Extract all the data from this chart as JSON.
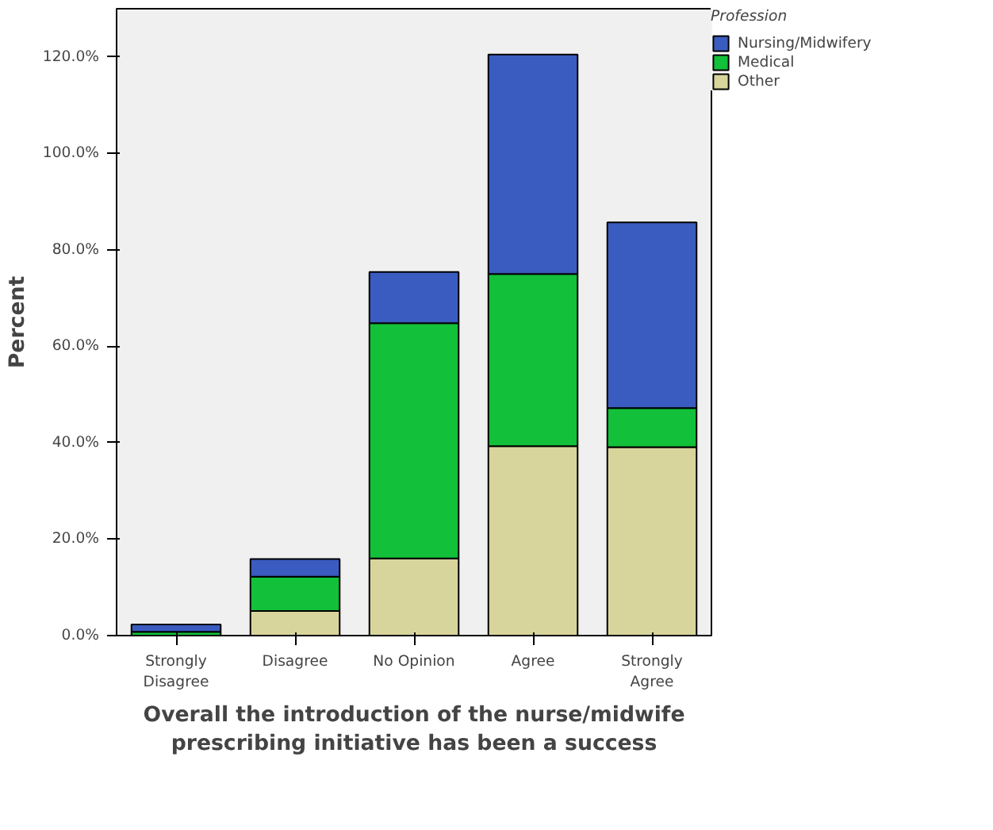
{
  "chart_data": {
    "type": "bar",
    "stacked": true,
    "xlabel": "Overall the introduction of the nurse/midwife\nprescribing initiative has been a success",
    "ylabel": "Percent",
    "legend_title": "Profession",
    "categories": [
      "Strongly\nDisagree",
      "Disagree",
      "No Opinion",
      "Agree",
      "Strongly\nAgree"
    ],
    "series": [
      {
        "name": "Other",
        "color": "#d8d59c",
        "values": [
          0,
          5.1,
          16.0,
          39.3,
          39.1
        ]
      },
      {
        "name": "Medical",
        "color": "#12c03a",
        "values": [
          0.8,
          7.1,
          48.8,
          35.7,
          8.1
        ]
      },
      {
        "name": "Nursing/Midwifery",
        "color": "#3a5cc0",
        "values": [
          1.5,
          3.7,
          10.6,
          45.5,
          38.5
        ]
      }
    ],
    "ylim": [
      0,
      130
    ],
    "yticks": [
      {
        "value": 0,
        "label": "0.0%"
      },
      {
        "value": 20,
        "label": "20.0%"
      },
      {
        "value": 40,
        "label": "40.0%"
      },
      {
        "value": 60,
        "label": "60.0%"
      },
      {
        "value": 80,
        "label": "80.0%"
      },
      {
        "value": 100,
        "label": "100.0%"
      },
      {
        "value": 120,
        "label": "120.0%"
      }
    ],
    "grid": false,
    "legend": "top right"
  }
}
